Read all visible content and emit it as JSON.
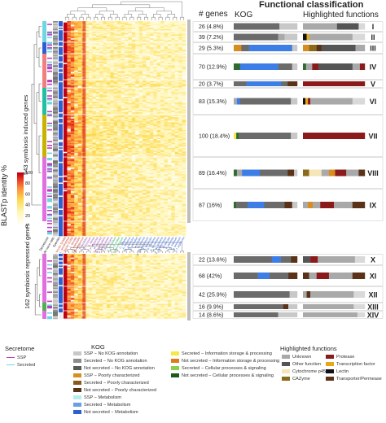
{
  "headers": {
    "title": "Functional classification",
    "genes": "# genes",
    "kog": "KOG",
    "highlighted": "Highlighted functions"
  },
  "side_labels": {
    "induced": "543 symbiosis induced genes",
    "repressed": "162 symbiosis repressed genes"
  },
  "colorbar": {
    "title": "BLASTp identity %",
    "ticks": [
      "0",
      "20",
      "40",
      "60",
      "80",
      "100"
    ]
  },
  "heatmap_axis": {
    "left_labels": [
      "Secretome",
      "de novo ratio",
      "Species"
    ],
    "column_labels": [
      "L. bicolor S238N",
      "L. amethystina",
      "L. bicolor 81306",
      "L. laccata",
      "T. matsutake",
      "H. cylindrosporum",
      "P. involutus",
      "P. croceum",
      "S. luteus",
      "P. tinctorius",
      "R. vinicolor",
      "S. vermicularis",
      "P. microcarpus",
      "A. muscaria",
      "C. geophilum",
      "O. maius",
      "T. melanosporum",
      "C. cibarius",
      "A. bisporus",
      "S. commune",
      "P. ostreatus",
      "L. edodes",
      "C. cinerea",
      "P. chrysosporium",
      "T. versicolor",
      "D. squalens",
      "S. lacrymans",
      "C. puteana",
      "F. mediterranea",
      "A. delicata",
      "P. placenta",
      "G. trabeum",
      "H. annosum",
      "J. argillacea"
    ]
  },
  "clusters": [
    {
      "id": "I",
      "genes": "26 (4.8%)",
      "kog": [
        [
          "#6b6b6b",
          72
        ],
        [
          "#c8c8c8",
          28
        ]
      ],
      "hf": [
        [
          "#a9a9a9",
          55
        ],
        [
          "#555555",
          35
        ],
        [
          "#d9d9d9",
          10
        ]
      ]
    },
    {
      "id": "II",
      "genes": "39 (7.2%)",
      "kog": [
        [
          "#6b6b6b",
          70
        ],
        [
          "#a9a9a9",
          10
        ],
        [
          "#c8c8c8",
          20
        ]
      ],
      "hf": [
        [
          "#111111",
          6
        ],
        [
          "#e6a817",
          4
        ],
        [
          "#a9a9a9",
          70
        ],
        [
          "#d9d9d9",
          20
        ]
      ]
    },
    {
      "id": "III",
      "genes": "29 (5.3%)",
      "kog": [
        [
          "#d98c1f",
          12
        ],
        [
          "#6b6b6b",
          12
        ],
        [
          "#3d7de6",
          68
        ],
        [
          "#c8c8c8",
          8
        ]
      ],
      "hf": [
        [
          "#d98c1f",
          10
        ],
        [
          "#8b6a1a",
          12
        ],
        [
          "#5a3217",
          8
        ],
        [
          "#555555",
          55
        ],
        [
          "#a9a9a9",
          15
        ]
      ]
    },
    {
      "id": "IV",
      "genes": "70 (12.9%)",
      "kog": [
        [
          "#2e6b2e",
          10
        ],
        [
          "#3d7de6",
          60
        ],
        [
          "#6b6b6b",
          22
        ],
        [
          "#c8c8c8",
          8
        ]
      ],
      "hf": [
        [
          "#2e6b2e",
          5
        ],
        [
          "#a9a9a9",
          10
        ],
        [
          "#8b1a1a",
          10
        ],
        [
          "#555555",
          55
        ],
        [
          "#a9a9a9",
          12
        ],
        [
          "#8b1a1a",
          8
        ]
      ]
    },
    {
      "id": "V",
      "genes": "20 (3.7%)",
      "kog": [
        [
          "#6b6b6b",
          20
        ],
        [
          "#3d7de6",
          55
        ],
        [
          "#6b6b6b",
          10
        ],
        [
          "#5a3217",
          15
        ]
      ],
      "hf": [
        [
          "#8b1a1a",
          100
        ]
      ]
    },
    {
      "id": "VI",
      "genes": "83 (15.3%)",
      "kog": [
        [
          "#a9a9a9",
          5
        ],
        [
          "#3d7de6",
          5
        ],
        [
          "#6b6b6b",
          80
        ],
        [
          "#c8c8c8",
          10
        ]
      ],
      "hf": [
        [
          "#111111",
          4
        ],
        [
          "#e6a817",
          4
        ],
        [
          "#8b1a1a",
          4
        ],
        [
          "#a9a9a9",
          68
        ],
        [
          "#d9d9d9",
          20
        ]
      ]
    },
    {
      "id": "VII",
      "genes": "100 (18.4%)",
      "kog": [
        [
          "#f7e84a",
          4
        ],
        [
          "#2e6b2e",
          4
        ],
        [
          "#6b6b6b",
          82
        ],
        [
          "#c8c8c8",
          10
        ]
      ],
      "hf": [
        [
          "#8b1a1a",
          100
        ]
      ]
    },
    {
      "id": "VIII",
      "genes": "89 (16.4%)",
      "kog": [
        [
          "#2e6b2e",
          5
        ],
        [
          "#a9a9a9",
          8
        ],
        [
          "#3d7de6",
          28
        ],
        [
          "#6b6b6b",
          44
        ],
        [
          "#5a3217",
          10
        ],
        [
          "#c8c8c8",
          5
        ]
      ],
      "hf": [
        [
          "#8b6a1a",
          10
        ],
        [
          "#f5e6b8",
          20
        ],
        [
          "#a9a9a9",
          12
        ],
        [
          "#d98c1f",
          10
        ],
        [
          "#8b1a1a",
          18
        ],
        [
          "#a9a9a9",
          20
        ],
        [
          "#5a3217",
          10
        ]
      ]
    },
    {
      "id": "IX",
      "genes": "87 (16%)",
      "kog": [
        [
          "#2e6b2e",
          4
        ],
        [
          "#6b6b6b",
          18
        ],
        [
          "#3d7de6",
          26
        ],
        [
          "#6b6b6b",
          32
        ],
        [
          "#5a3217",
          12
        ],
        [
          "#c8c8c8",
          8
        ]
      ],
      "hf": [
        [
          "#a9a9a9",
          8
        ],
        [
          "#d98c1f",
          8
        ],
        [
          "#a9a9a9",
          12
        ],
        [
          "#8b1a1a",
          22
        ],
        [
          "#a9a9a9",
          30
        ],
        [
          "#5a3217",
          20
        ]
      ]
    },
    {
      "id": "X",
      "genes": "22 (13.6%)",
      "kog": [
        [
          "#6b6b6b",
          60
        ],
        [
          "#3d7de6",
          14
        ],
        [
          "#6b6b6b",
          16
        ],
        [
          "#5a3217",
          10
        ]
      ],
      "hf": [
        [
          "#555555",
          12
        ],
        [
          "#8b1a1a",
          12
        ],
        [
          "#a9a9a9",
          60
        ],
        [
          "#d9d9d9",
          16
        ]
      ]
    },
    {
      "id": "XI",
      "genes": "68 (42%)",
      "kog": [
        [
          "#6b6b6b",
          38
        ],
        [
          "#3d7de6",
          18
        ],
        [
          "#6b6b6b",
          30
        ],
        [
          "#5a3217",
          14
        ]
      ],
      "hf": [
        [
          "#5a3217",
          10
        ],
        [
          "#a9a9a9",
          12
        ],
        [
          "#8b1a1a",
          20
        ],
        [
          "#a9a9a9",
          38
        ],
        [
          "#5a3217",
          20
        ]
      ]
    },
    {
      "id": "XII",
      "genes": "42 (25.9%)",
      "kog": [
        [
          "#6b6b6b",
          88
        ],
        [
          "#c8c8c8",
          12
        ]
      ],
      "hf": [
        [
          "#a9a9a9",
          6
        ],
        [
          "#5a3217",
          6
        ],
        [
          "#a9a9a9",
          70
        ],
        [
          "#d9d9d9",
          18
        ]
      ]
    },
    {
      "id": "XIII",
      "genes": "16 (9.9%)",
      "kog": [
        [
          "#6b6b6b",
          78
        ],
        [
          "#5a3217",
          8
        ],
        [
          "#c8c8c8",
          14
        ]
      ],
      "hf": [
        [
          "#a9a9a9",
          82
        ],
        [
          "#d9d9d9",
          18
        ]
      ]
    },
    {
      "id": "XIV",
      "genes": "14 (8.6%)",
      "kog": [
        [
          "#6b6b6b",
          70
        ],
        [
          "#c8c8c8",
          30
        ]
      ],
      "hf": [
        [
          "#a9a9a9",
          88
        ],
        [
          "#d9d9d9",
          12
        ]
      ]
    }
  ],
  "legend": {
    "secretome": {
      "title": "Secretome",
      "items": [
        {
          "label": "SSP",
          "color": "#c03cc0"
        },
        {
          "label": "Secreted",
          "color": "#6fd6e0"
        }
      ]
    },
    "kog": {
      "title": "KOG",
      "col1": [
        {
          "label": "SSP − No KOG annotation",
          "color": "#c8c8c8"
        },
        {
          "label": "Secreted − No KOG annotation",
          "color": "#8c8c8c"
        },
        {
          "label": "Not secreted − No KOG annotation",
          "color": "#5a5a5a"
        },
        {
          "label": "SSP − Poorly characterized",
          "color": "#d98c1f"
        },
        {
          "label": "Secreted − Poorly characterized",
          "color": "#8b5a1a"
        },
        {
          "label": "Not secreted − Poorly characterized",
          "color": "#5a3217"
        },
        {
          "label": "SSP − Metabolism",
          "color": "#b8ecec"
        },
        {
          "label": "Secreted − Metabolism",
          "color": "#6a9fe8"
        },
        {
          "label": "Not secreted − Metabolism",
          "color": "#2c5fd4"
        }
      ],
      "col2": [
        {
          "label": "Secreted − Information storage & processing",
          "color": "#f7e84a"
        },
        {
          "label": "Not secreted − Information storage & processing",
          "color": "#e07b1a"
        },
        {
          "label": "Secreted − Cellular processes & signaling",
          "color": "#8bd04a"
        },
        {
          "label": "Not secreted − Cellular processes & signaling",
          "color": "#1e5a1e"
        }
      ]
    },
    "highlighted": {
      "title": "Highlighted functions",
      "col1": [
        {
          "label": "Unknown",
          "color": "#a9a9a9"
        },
        {
          "label": "Other function",
          "color": "#555555"
        },
        {
          "label": "Cytochrome p450",
          "color": "#f5e6b8"
        },
        {
          "label": "CAZyme",
          "color": "#8b6a1a"
        }
      ],
      "col2": [
        {
          "label": "Protease",
          "color": "#8b1a1a"
        },
        {
          "label": "Transcription factor",
          "color": "#e6a817"
        },
        {
          "label": "Lectin",
          "color": "#111111"
        },
        {
          "label": "Transporter/Permease",
          "color": "#5a3217"
        }
      ]
    }
  }
}
